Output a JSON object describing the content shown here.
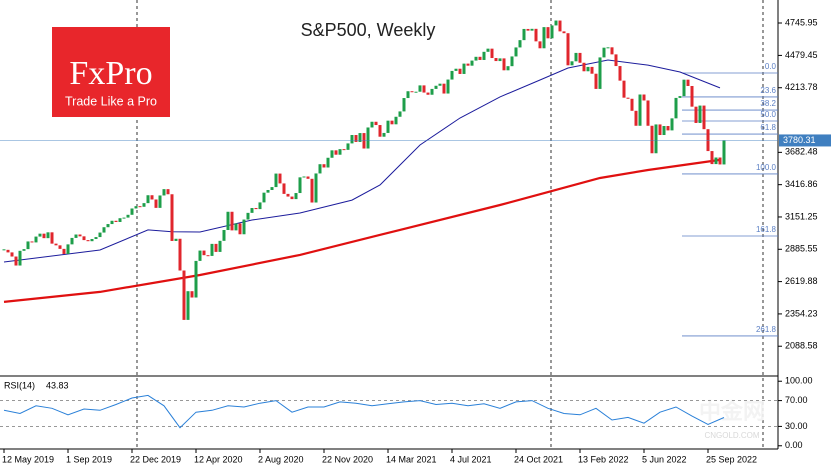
{
  "chart_data": {
    "type": "candlestick",
    "title": "S&P500, Weekly",
    "up_color": "#1e9e4a",
    "down_color": "#e0262d",
    "closes": [
      2881,
      2860,
      2826,
      2752,
      2873,
      2887,
      2950,
      2942,
      2990,
      3014,
      2977,
      3025,
      2932,
      2918,
      2889,
      2847,
      2926,
      2979,
      3007,
      2992,
      2961,
      2952,
      2970,
      2986,
      3023,
      3067,
      3093,
      3120,
      3110,
      3141,
      3146,
      3169,
      3221,
      3240,
      3235,
      3265,
      3330,
      3295,
      3226,
      3328,
      3380,
      3338,
      2954,
      2972,
      2711,
      2305,
      2541,
      2489,
      2790,
      2875,
      2837,
      2831,
      2930,
      2864,
      2955,
      3044,
      3194,
      3041,
      3098,
      3009,
      3130,
      3185,
      3225,
      3216,
      3271,
      3351,
      3373,
      3397,
      3508,
      3427,
      3341,
      3319,
      3298,
      3348,
      3477,
      3484,
      3465,
      3270,
      3509,
      3585,
      3558,
      3638,
      3699,
      3663,
      3709,
      3703,
      3756,
      3825,
      3768,
      3841,
      3714,
      3887,
      3934,
      3907,
      3811,
      3842,
      3943,
      3913,
      3975,
      4019,
      4129,
      4185,
      4180,
      4181,
      4233,
      4174,
      4156,
      4204,
      4230,
      4247,
      4166,
      4281,
      4352,
      4370,
      4327,
      4412,
      4395,
      4437,
      4468,
      4442,
      4509,
      4535,
      4458,
      4433,
      4455,
      4357,
      4391,
      4471,
      4545,
      4605,
      4697,
      4683,
      4698,
      4595,
      4538,
      4712,
      4620,
      4726,
      4766,
      4677,
      4662,
      4398,
      4431,
      4500,
      4419,
      4349,
      4385,
      4329,
      4204,
      4463,
      4543,
      4546,
      4488,
      4392,
      4272,
      4132,
      4123,
      4024,
      3901,
      4158,
      4109,
      3901,
      3675,
      3912,
      3825,
      3899,
      3863,
      3962,
      4130,
      4145,
      4280,
      4228,
      4058,
      3924,
      4067,
      3873,
      3693,
      3586,
      3640,
      3583,
      3780.31
    ],
    "last_price_color": "#3f7fc0",
    "xlim": [
      -1,
      193.5
    ],
    "xticks": [
      {
        "value": 0,
        "label": "12 May 2019"
      },
      {
        "value": 16,
        "label": "1 Sep 2019"
      },
      {
        "value": 32,
        "label": "22 Dec 2019"
      },
      {
        "value": 48,
        "label": "12 Apr 2020"
      },
      {
        "value": 64,
        "label": "2 Aug 2020"
      },
      {
        "value": 80,
        "label": "22 Nov 2020"
      },
      {
        "value": 96,
        "label": "14 Mar 2021"
      },
      {
        "value": 112,
        "label": "4 Jul 2021"
      },
      {
        "value": 128,
        "label": "24 Oct 2021"
      },
      {
        "value": 144,
        "label": "13 Feb 2022"
      },
      {
        "value": 160,
        "label": "5 Jun 2022"
      },
      {
        "value": 176,
        "label": "25 Sep 2022"
      }
    ],
    "ylim": [
      1852,
      4935
    ],
    "yticks": [
      4745.95,
      4479.45,
      4213.78,
      3682.48,
      3416.86,
      3151.25,
      2885.55,
      2619.88,
      2354.23,
      2088.58
    ],
    "ma": [
      {
        "color": "#1c1c9c",
        "x": [
          0,
          24,
          36,
          42,
          49,
          62,
          74,
          87,
          94,
          104,
          114,
          124,
          134,
          141,
          151,
          161,
          169,
          179
        ],
        "values": [
          2781,
          2880,
          3045,
          3030,
          3028,
          3126,
          3184,
          3290,
          3414,
          3743,
          3965,
          4138,
          4277,
          4376,
          4442,
          4400,
          4343,
          4212
        ]
      },
      {
        "color": "#e01010",
        "x": [
          0,
          24,
          49,
          74,
          99,
          124,
          136,
          149,
          161,
          179
        ],
        "values": [
          2453,
          2535,
          2674,
          2839,
          3045,
          3250,
          3356,
          3472,
          3537,
          3620
        ]
      }
    ],
    "fibo": {
      "color": "#5b7fc4",
      "levels": [
        {
          "label": "0.0",
          "value": 4335
        },
        {
          "label": "23.6",
          "value": 4138
        },
        {
          "label": "38.2",
          "value": 4030
        },
        {
          "label": "50.0",
          "value": 3940
        },
        {
          "label": "61.8",
          "value": 3833
        },
        {
          "label": "100.0",
          "value": 3505
        },
        {
          "label": "161.8",
          "value": 2995
        },
        {
          "label": "261.8",
          "value": 2173
        }
      ]
    },
    "rsi": {
      "name": "RSI(14)",
      "color": "#2a80d8",
      "ylim": [
        -5,
        105
      ],
      "yticks": [
        {
          "value": 100,
          "label": "100.00"
        },
        {
          "value": 70,
          "label": "70.00"
        },
        {
          "value": 30,
          "label": "30.00"
        },
        {
          "value": 0,
          "label": "0.00"
        }
      ],
      "x": [
        0,
        4,
        8,
        12,
        16,
        20,
        24,
        28,
        32,
        36,
        40,
        44,
        48,
        52,
        56,
        60,
        64,
        68,
        72,
        76,
        80,
        84,
        88,
        92,
        96,
        100,
        104,
        108,
        112,
        116,
        120,
        124,
        128,
        132,
        136,
        140,
        144,
        148,
        152,
        156,
        160,
        164,
        168,
        172,
        176,
        180
      ],
      "values": [
        55,
        50,
        62,
        58,
        48,
        57,
        55,
        64,
        74,
        78,
        62,
        28,
        52,
        55,
        62,
        60,
        66,
        70,
        52,
        60,
        60,
        68,
        66,
        62,
        65,
        68,
        70,
        64,
        66,
        62,
        65,
        58,
        68,
        70,
        58,
        50,
        48,
        58,
        40,
        44,
        35,
        52,
        60,
        46,
        33,
        43.83
      ]
    }
  },
  "logo": {
    "brand": "FxPro",
    "slogan": "Trade Like a Pro"
  },
  "watermark": {
    "name": "中金网",
    "site": "CNGOLD.COM"
  }
}
